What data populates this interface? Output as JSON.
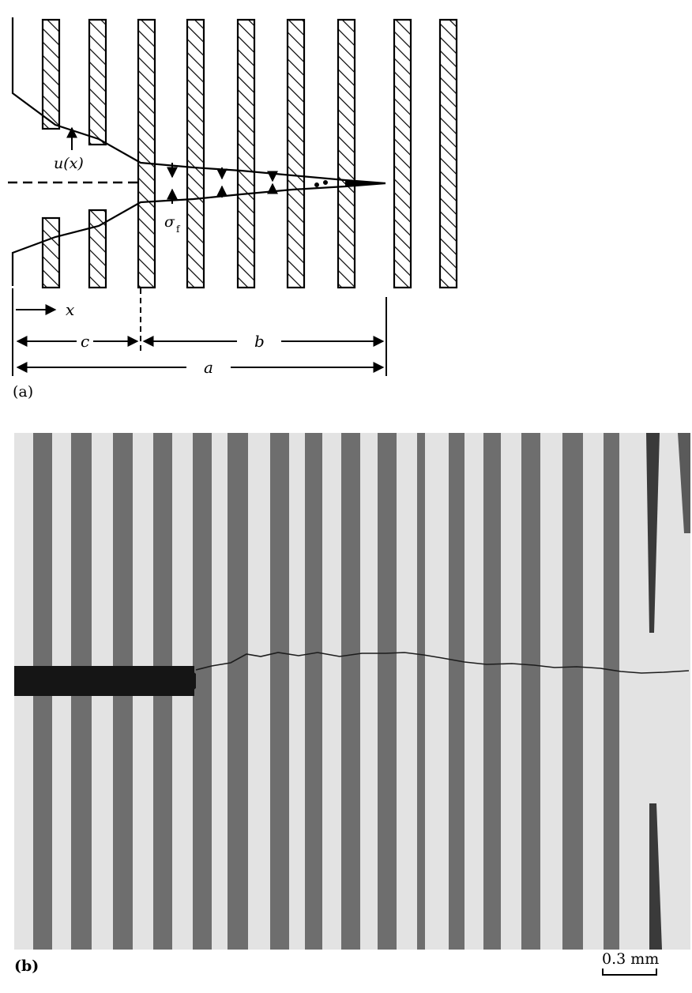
{
  "panel_a": {
    "tag": "(a)",
    "label_u": "u(x)",
    "label_sigma": "σ",
    "label_sigma_sub": "f",
    "label_x": "x",
    "label_c": "c",
    "label_b": "b",
    "label_a": "a"
  },
  "panel_b": {
    "tag": "(b)",
    "scale_bar_label": "0.3 mm",
    "colors": {
      "stripe": "#6e6e6e",
      "background": "#e4e4e4",
      "notch": "#151515"
    }
  }
}
